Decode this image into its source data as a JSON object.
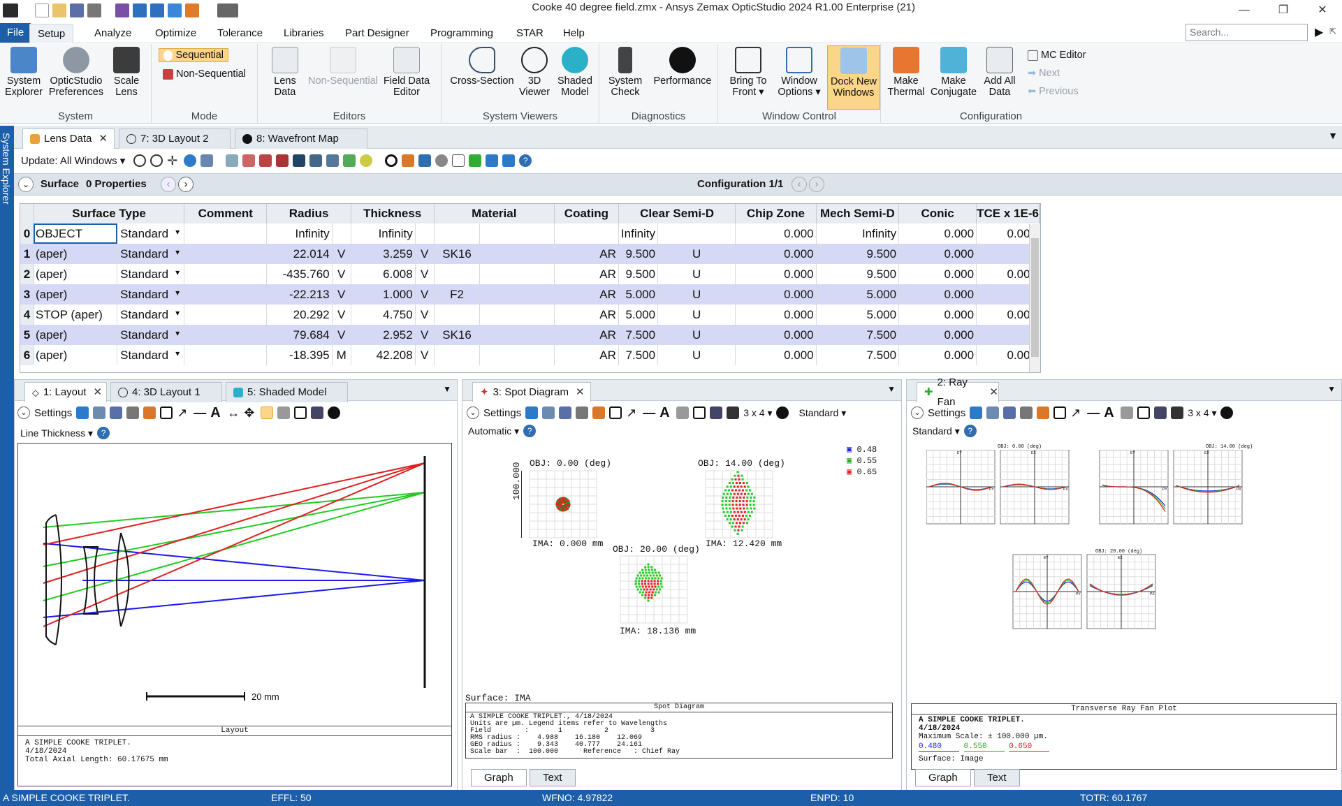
{
  "window": {
    "title": "Cooke 40 degree field.zmx - Ansys Zemax OpticStudio 2024 R1.00   Enterprise (21)",
    "minimize": "—",
    "maximize": "❐",
    "close": "✕"
  },
  "ribbon_tabs": [
    "File",
    "Setup",
    "Analyze",
    "Optimize",
    "Tolerance",
    "Libraries",
    "Part Designer",
    "Programming",
    "STAR",
    "Help"
  ],
  "search_placeholder": "Search...",
  "ribbon": {
    "system": {
      "label": "System",
      "b1": "System Explorer",
      "b2": "OpticStudio Preferences",
      "b3": "Scale Lens"
    },
    "mode": {
      "label": "Mode",
      "seq": "Sequential",
      "nonseq": "Non-Sequential"
    },
    "editors": {
      "label": "Editors",
      "b1": "Lens Data",
      "b2": "Non-Sequential",
      "b3": "Field Data Editor"
    },
    "viewers": {
      "label": "System Viewers",
      "b1": "Cross-Section",
      "b2": "3D Viewer",
      "b3": "Shaded Model"
    },
    "diag": {
      "label": "Diagnostics",
      "b1": "System Check",
      "b2": "Performance"
    },
    "winctl": {
      "label": "Window Control",
      "b1": "Bring To Front ▾",
      "b2": "Window Options ▾",
      "b3": "Dock New Windows"
    },
    "config": {
      "label": "Configuration",
      "b1": "Make Thermal",
      "b2": "Make Conjugate",
      "b3": "Add All Data",
      "mc": "MC Editor",
      "next": "Next",
      "prev": "Previous"
    }
  },
  "sysexp_label": "System Explorer",
  "doc_tabs": [
    "Lens Data",
    "7: 3D Layout 2",
    "8: Wavefront Map"
  ],
  "update_label": "Update: All Windows ▾",
  "surface_bar": {
    "surface": "Surface",
    "props": "0 Properties",
    "config": "Configuration 1/1"
  },
  "lde": {
    "headers": [
      "Surface Type",
      "Comment",
      "Radius",
      "Thickness",
      "Material",
      "Coating",
      "Clear Semi-D",
      "Chip Zone",
      "Mech Semi-D",
      "Conic",
      "TCE x 1E-6"
    ],
    "rows": [
      {
        "n": "0",
        "name": "OBJECT",
        "type": "Standard",
        "rad": "Infinity",
        "rs": "",
        "thk": "Infinity",
        "ts": "",
        "mat": "",
        "coat": "",
        "clr": "Infinity",
        "cs": "",
        "chip": "0.000",
        "mech": "Infinity",
        "conic": "0.000",
        "tce": "0.000"
      },
      {
        "n": "1",
        "name": "(aper)",
        "type": "Standard",
        "rad": "22.014",
        "rs": "V",
        "thk": "3.259",
        "ts": "V",
        "mat": "SK16",
        "coat": "AR",
        "clr": "9.500",
        "cs": "U",
        "chip": "0.000",
        "mech": "9.500",
        "conic": "0.000",
        "tce": "-"
      },
      {
        "n": "2",
        "name": "(aper)",
        "type": "Standard",
        "rad": "-435.760",
        "rs": "V",
        "thk": "6.008",
        "ts": "V",
        "mat": "",
        "coat": "AR",
        "clr": "9.500",
        "cs": "U",
        "chip": "0.000",
        "mech": "9.500",
        "conic": "0.000",
        "tce": "0.000"
      },
      {
        "n": "3",
        "name": "(aper)",
        "type": "Standard",
        "rad": "-22.213",
        "rs": "V",
        "thk": "1.000",
        "ts": "V",
        "mat": "F2",
        "coat": "AR",
        "clr": "5.000",
        "cs": "U",
        "chip": "0.000",
        "mech": "5.000",
        "conic": "0.000",
        "tce": "-"
      },
      {
        "n": "4",
        "name": "STOP (aper)",
        "type": "Standard",
        "rad": "20.292",
        "rs": "V",
        "thk": "4.750",
        "ts": "V",
        "mat": "",
        "coat": "AR",
        "clr": "5.000",
        "cs": "U",
        "chip": "0.000",
        "mech": "5.000",
        "conic": "0.000",
        "tce": "0.000"
      },
      {
        "n": "5",
        "name": "(aper)",
        "type": "Standard",
        "rad": "79.684",
        "rs": "V",
        "thk": "2.952",
        "ts": "V",
        "mat": "SK16",
        "coat": "AR",
        "clr": "7.500",
        "cs": "U",
        "chip": "0.000",
        "mech": "7.500",
        "conic": "0.000",
        "tce": "-"
      },
      {
        "n": "6",
        "name": "(aper)",
        "type": "Standard",
        "rad": "-18.395",
        "rs": "M",
        "thk": "42.208",
        "ts": "V",
        "mat": "",
        "coat": "AR",
        "clr": "7.500",
        "cs": "U",
        "chip": "0.000",
        "mech": "7.500",
        "conic": "0.000",
        "tce": "0.000"
      }
    ]
  },
  "pane1": {
    "tabs": [
      "1: Layout",
      "4: 3D Layout 1",
      "5: Shaded Model"
    ],
    "settings": "Settings",
    "line_thickness": "Line Thickness ▾",
    "scalebar": "20 mm",
    "caption": "Layout",
    "info1": "A SIMPLE COOKE TRIPLET.",
    "info2": "4/18/2024",
    "info3": "Total Axial Length:   60.17675 mm"
  },
  "pane2": {
    "tab": "3: Spot Diagram",
    "settings": "Settings",
    "grid": "3 x 4 ▾",
    "mode": "Standard ▾",
    "auto": "Automatic ▾",
    "legend": [
      "0.48",
      "0.55",
      "0.65"
    ],
    "obj0": "OBJ: 0.00 (deg)",
    "obj14": "OBJ: 14.00 (deg)",
    "obj20": "OBJ: 20.00 (deg)",
    "ima0": "IMA: 0.000 mm",
    "ima14": "IMA: 12.420 mm",
    "ima20": "IMA: 18.136 mm",
    "yaxis": "100.000",
    "surface": "Surface: IMA",
    "caption": "Spot Diagram",
    "info": [
      "A SIMPLE COOKE TRIPLET., 4/18/2024",
      "Units are µm. Legend items refer to Wavelengths",
      "Field        :       1          2          3",
      "RMS radius :    4.988    16.180    12.069",
      "GEO radius :    9.343    40.777    24.161",
      "Scale bar  :  100.000      Reference   : Chief Ray"
    ],
    "btabs": [
      "Graph",
      "Text"
    ]
  },
  "pane3": {
    "tab": "2: Ray Fan",
    "settings": "Settings",
    "grid": "3 x 4 ▾",
    "mode": "Standard ▾",
    "obj0": "OBJ: 0.00 (deg)",
    "obj14": "OBJ: 14.00 (deg)",
    "obj20": "OBJ: 20.00 (deg)",
    "ey": "EY",
    "ex": "EX",
    "py": "PY",
    "px": "PX",
    "caption": "Transverse Ray Fan Plot",
    "info1": "A SIMPLE COOKE TRIPLET.",
    "info2": "4/18/2024",
    "info3": "Maximum Scale: ± 100.000 µm.",
    "w1": "0.480",
    "w2": "0.550",
    "w3": "0.650",
    "surface": "Surface: Image",
    "btabs": [
      "Graph",
      "Text"
    ]
  },
  "status": {
    "s1": "A SIMPLE COOKE TRIPLET.",
    "s2": "EFFL: 50",
    "s3": "WFNO: 4.97822",
    "s4": "ENPD: 10",
    "s5": "TOTR: 60.1767"
  },
  "colors": {
    "accent": "#1c5ea8",
    "red": "#e02020",
    "green": "#20cc20",
    "blue": "#1a1aee",
    "row_alt": "#d6d9f5"
  }
}
